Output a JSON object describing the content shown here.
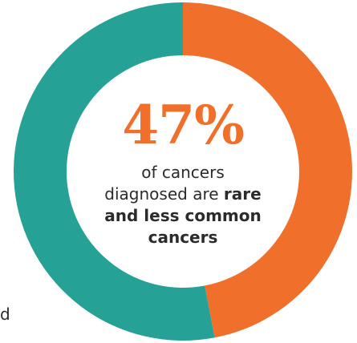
{
  "chart_data": {
    "type": "pie",
    "subtype": "donut",
    "slices": [
      {
        "value": 47,
        "color": "#f0702b"
      },
      {
        "value": 53,
        "color": "#25a196"
      }
    ],
    "center_text": {
      "value": "47%",
      "line1": "of cancers",
      "line2_prefix": "diagnosed are",
      "line2_bold": "rare",
      "line3": "and less common",
      "line4": "cancers"
    }
  },
  "colors": {
    "accent": "#f0702b",
    "secondary": "#25a196",
    "text": "#2b2b2b"
  },
  "edge_fragment": "d"
}
